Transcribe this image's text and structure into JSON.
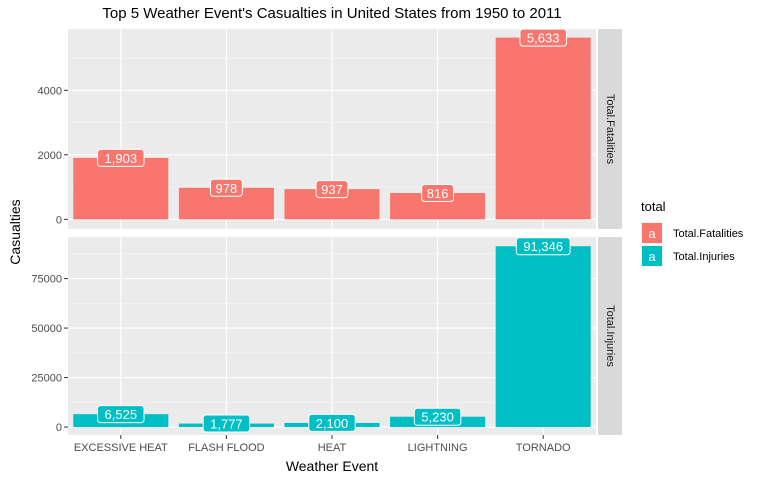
{
  "chart_data": {
    "type": "bar",
    "title": "Top 5 Weather Event's Casualties in United States from 1950 to 2011",
    "xlabel": "Weather Event",
    "ylabel": "Casualties",
    "categories": [
      "EXCESSIVE HEAT",
      "FLASH FLOOD",
      "HEAT",
      "LIGHTNING",
      "TORNADO"
    ],
    "grid": true,
    "facet": "rows",
    "series": [
      {
        "name": "Total.Fatalities",
        "color": "#F8766D",
        "values": [
          1903,
          978,
          937,
          816,
          5633
        ],
        "labels": [
          "1,903",
          "978",
          "937",
          "816",
          "5,633"
        ],
        "ylim": [
          -300,
          5900
        ],
        "yticks": [
          0,
          2000,
          4000
        ],
        "ytick_labels": [
          "0",
          "2000",
          "4000"
        ]
      },
      {
        "name": "Total.Injuries",
        "color": "#00BFC4",
        "values": [
          6525,
          1777,
          2100,
          5230,
          91346
        ],
        "labels": [
          "6,525",
          "1,777",
          "2,100",
          "5,230",
          "91,346"
        ],
        "ylim": [
          -4000,
          96000
        ],
        "yticks": [
          0,
          25000,
          50000,
          75000
        ],
        "ytick_labels": [
          "0",
          "25000",
          "50000",
          "75000"
        ]
      }
    ],
    "legend": {
      "title": "total",
      "position": "right",
      "key_glyph": "a",
      "entries": [
        "Total.Fatalities",
        "Total.Injuries"
      ]
    }
  }
}
